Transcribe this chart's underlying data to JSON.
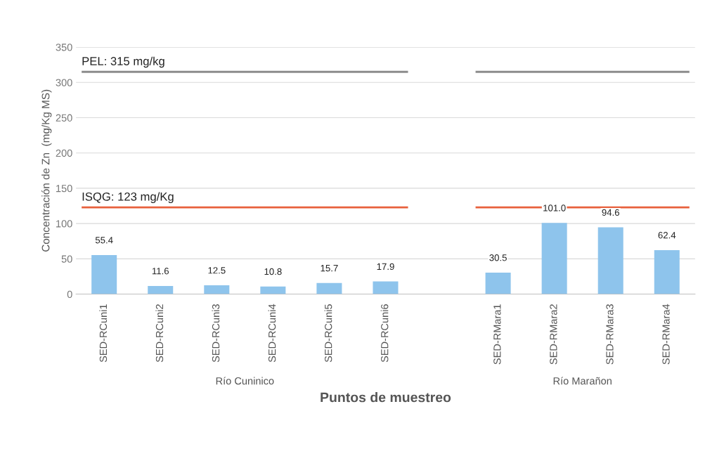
{
  "chart_data": {
    "type": "bar",
    "xlabel": "Puntos de muestreo",
    "ylabel": "Concentración de Zn  (mg/Kg MS)",
    "categories": [
      "SED-RCuni1",
      "SED-RCuni2",
      "SED-RCuni3",
      "SED-RCuni4",
      "SED-RCuni5",
      "SED-RCuni6",
      null,
      "SED-RMara1",
      "SED-RMara2",
      "SED-RMara3",
      "SED-RMara4"
    ],
    "values": [
      55.4,
      11.6,
      12.5,
      10.8,
      15.7,
      17.9,
      null,
      30.5,
      101.0,
      94.6,
      62.4
    ],
    "color": "#8ec4ec",
    "value_labels": [
      "55.4",
      "11.6",
      "12.5",
      "10.8",
      "15.7",
      "17.9",
      null,
      "30.5",
      "101.0",
      "94.6",
      "62.4"
    ],
    "ylim": [
      0,
      350
    ],
    "yticks": [
      0,
      50,
      100,
      150,
      200,
      250,
      300,
      350
    ],
    "grid": "y",
    "ref_lines": [
      {
        "axis": "y",
        "value": 315,
        "label": "PEL: 315 mg/kg",
        "color": "#8c8c8c"
      },
      {
        "axis": "y",
        "value": 123,
        "label": "ISQG: 123 mg/Kg",
        "color": "#e8603c"
      }
    ],
    "annotations": [
      "Río Cuninico",
      "Río Marañon"
    ]
  }
}
